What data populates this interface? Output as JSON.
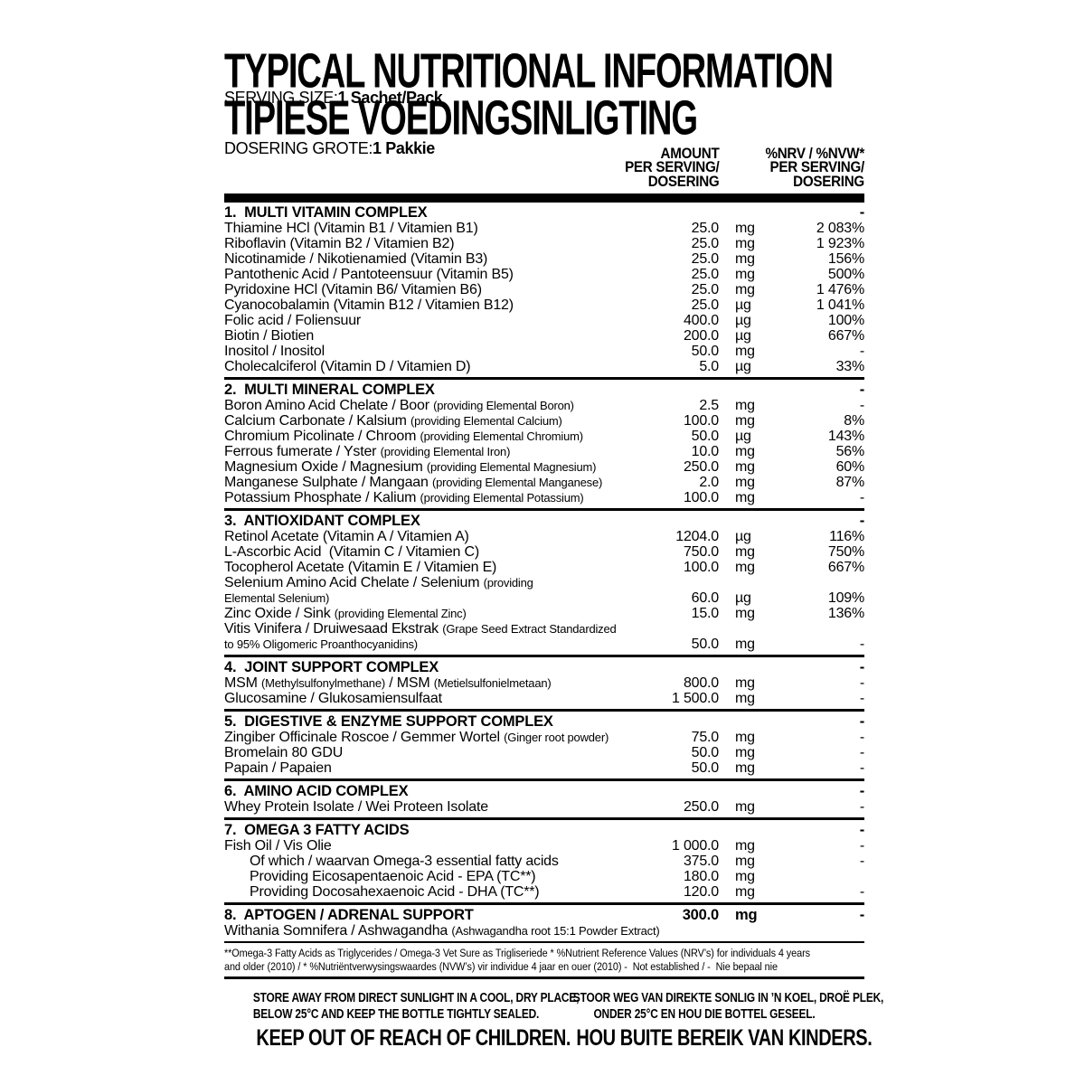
{
  "title": {
    "line1": "TYPICAL NUTRITIONAL INFORMATION",
    "line2": "TIPIESE VOEDINGSINLIGTING"
  },
  "table_header": {
    "serving_size_label": "SERVING SIZE:",
    "serving_size_value": "1 Sachet/Pack",
    "dosering_label": "DOSERING GROTE:",
    "dosering_value": "1 Pakkie",
    "amount_col": [
      "AMOUNT",
      "PER SERVING/",
      "DOSERING"
    ],
    "nrv_col": [
      "%NRV / %NVW*",
      "PER SERVING/",
      "DOSERING"
    ]
  },
  "sections": [
    {
      "num": "1.",
      "name": "MULTI VITAMIN COMPLEX",
      "amount": "",
      "unit": "",
      "nrv": "-",
      "rows": [
        {
          "seg": [
            {
              "t": "Thiamine HCl (Vitamin B1 / Vitamien B1)"
            }
          ],
          "amount": "25.0",
          "unit": "mg",
          "nrv": "2 083%"
        },
        {
          "seg": [
            {
              "t": "Riboflavin (Vitamin B2 / Vitamien B2)"
            }
          ],
          "amount": "25.0",
          "unit": "mg",
          "nrv": "1 923%"
        },
        {
          "seg": [
            {
              "t": "Nicotinamide / Nikotienamied (Vitamin B3)"
            }
          ],
          "amount": "25.0",
          "unit": "mg",
          "nrv": "156%"
        },
        {
          "seg": [
            {
              "t": "Pantothenic Acid / Pantoteensuur (Vitamin B5)"
            }
          ],
          "amount": "25.0",
          "unit": "mg",
          "nrv": "500%"
        },
        {
          "seg": [
            {
              "t": "Pyridoxine HCl (Vitamin B6/ Vitamien B6)"
            }
          ],
          "amount": "25.0",
          "unit": "mg",
          "nrv": "1 476%"
        },
        {
          "seg": [
            {
              "t": "Cyanocobalamin (Vitamin B12 / Vitamien B12)"
            }
          ],
          "amount": "25.0",
          "unit": "µg",
          "nrv": "1 041%"
        },
        {
          "seg": [
            {
              "t": "Folic acid / Foliensuur"
            }
          ],
          "amount": "400.0",
          "unit": "µg",
          "nrv": "100%"
        },
        {
          "seg": [
            {
              "t": "Biotin / Biotien"
            }
          ],
          "amount": "200.0",
          "unit": "µg",
          "nrv": "667%"
        },
        {
          "seg": [
            {
              "t": "Inositol / Inositol"
            }
          ],
          "amount": "50.0",
          "unit": "mg",
          "nrv": "-"
        },
        {
          "seg": [
            {
              "t": "Cholecalciferol (Vitamin D / Vitamien D)"
            }
          ],
          "amount": "5.0",
          "unit": "µg",
          "nrv": "33%"
        }
      ]
    },
    {
      "num": "2.",
      "name": "MULTI MINERAL COMPLEX",
      "amount": "",
      "unit": "",
      "nrv": "-",
      "rows": [
        {
          "seg": [
            {
              "t": "Boron Amino Acid Chelate / Boor "
            },
            {
              "t": "(providing Elemental Boron)",
              "sm": true
            }
          ],
          "amount": "2.5",
          "unit": "mg",
          "nrv": "-"
        },
        {
          "seg": [
            {
              "t": "Calcium Carbonate / Kalsium "
            },
            {
              "t": "(providing Elemental Calcium)",
              "sm": true
            }
          ],
          "amount": "100.0",
          "unit": "mg",
          "nrv": "8%"
        },
        {
          "seg": [
            {
              "t": "Chromium Picolinate / Chroom "
            },
            {
              "t": "(providing Elemental Chromium)",
              "sm": true
            }
          ],
          "amount": "50.0",
          "unit": "µg",
          "nrv": "143%"
        },
        {
          "seg": [
            {
              "t": "Ferrous fumerate / Yster "
            },
            {
              "t": "(providing Elemental Iron)",
              "sm": true
            }
          ],
          "amount": "10.0",
          "unit": "mg",
          "nrv": "56%"
        },
        {
          "seg": [
            {
              "t": "Magnesium Oxide / Magnesium "
            },
            {
              "t": "(providing Elemental Magnesium)",
              "sm": true
            }
          ],
          "amount": "250.0",
          "unit": "mg",
          "nrv": "60%"
        },
        {
          "seg": [
            {
              "t": "Manganese Sulphate / Mangaan "
            },
            {
              "t": "(providing Elemental Manganese)",
              "sm": true
            }
          ],
          "amount": "2.0",
          "unit": "mg",
          "nrv": "87%"
        },
        {
          "seg": [
            {
              "t": "Potassium Phosphate / Kalium "
            },
            {
              "t": "(providing Elemental Potassium)",
              "sm": true
            }
          ],
          "amount": "100.0",
          "unit": "mg",
          "nrv": "-"
        }
      ]
    },
    {
      "num": "3.",
      "name": "ANTIOXIDANT COMPLEX",
      "amount": "",
      "unit": "",
      "nrv": "-",
      "rows": [
        {
          "seg": [
            {
              "t": "Retinol Acetate (Vitamin A / Vitamien A)"
            }
          ],
          "amount": "1204.0",
          "unit": "µg",
          "nrv": "116%"
        },
        {
          "seg": [
            {
              "t": "L-Ascorbic Acid  (Vitamin C / Vitamien C)"
            }
          ],
          "amount": "750.0",
          "unit": "mg",
          "nrv": "750%"
        },
        {
          "seg": [
            {
              "t": "Tocopherol Acetate (Vitamin E / Vitamien E)"
            }
          ],
          "amount": "100.0",
          "unit": "mg",
          "nrv": "667%"
        },
        {
          "seg": [
            {
              "t": "Selenium Amino Acid Chelate / Selenium "
            },
            {
              "t": "(providing",
              "sm": true
            }
          ],
          "amount": "",
          "unit": "",
          "nrv": ""
        },
        {
          "seg": [
            {
              "t": "Elemental Selenium)",
              "sm": true
            }
          ],
          "amount": "60.0",
          "unit": "µg",
          "nrv": "109%"
        },
        {
          "seg": [
            {
              "t": "Zinc Oxide / Sink "
            },
            {
              "t": "(providing Elemental Zinc)",
              "sm": true
            }
          ],
          "amount": "15.0",
          "unit": "mg",
          "nrv": "136%"
        },
        {
          "seg": [
            {
              "t": "Vitis Vinifera / Druiwesaad Ekstrak "
            },
            {
              "t": "(Grape Seed Extract Standardized",
              "sm": true
            }
          ],
          "amount": "",
          "unit": "",
          "nrv": ""
        },
        {
          "seg": [
            {
              "t": "to 95% Oligomeric Proanthocyanidins)",
              "sm": true
            }
          ],
          "amount": "50.0",
          "unit": "mg",
          "nrv": "-"
        }
      ]
    },
    {
      "num": "4.",
      "name": "JOINT SUPPORT COMPLEX",
      "amount": "",
      "unit": "",
      "nrv": "-",
      "rows": [
        {
          "seg": [
            {
              "t": "MSM "
            },
            {
              "t": "(Methylsulfonylmethane)",
              "sm": true
            },
            {
              "t": " / MSM "
            },
            {
              "t": "(Metielsulfonielmetaan)",
              "sm": true
            }
          ],
          "amount": "800.0",
          "unit": "mg",
          "nrv": "-"
        },
        {
          "seg": [
            {
              "t": "Glucosamine / Glukosamiensulfaat"
            }
          ],
          "amount": "1 500.0",
          "unit": "mg",
          "nrv": "-"
        }
      ]
    },
    {
      "num": "5.",
      "name": "DIGESTIVE & ENZYME SUPPORT COMPLEX",
      "amount": "",
      "unit": "",
      "nrv": "-",
      "rows": [
        {
          "seg": [
            {
              "t": "Zingiber Officinale Roscoe / Gemmer Wortel "
            },
            {
              "t": "(Ginger root powder)",
              "sm": true
            }
          ],
          "amount": "75.0",
          "unit": "mg",
          "nrv": "-"
        },
        {
          "seg": [
            {
              "t": "Bromelain 80 GDU"
            }
          ],
          "amount": "50.0",
          "unit": "mg",
          "nrv": "-"
        },
        {
          "seg": [
            {
              "t": "Papain / Papaien"
            }
          ],
          "amount": "50.0",
          "unit": "mg",
          "nrv": "-"
        }
      ]
    },
    {
      "num": "6.",
      "name": "AMINO ACID COMPLEX",
      "amount": "",
      "unit": "",
      "nrv": "-",
      "rows": [
        {
          "seg": [
            {
              "t": "Whey Protein Isolate / Wei Proteen Isolate"
            }
          ],
          "amount": "250.0",
          "unit": "mg",
          "nrv": "-"
        }
      ]
    },
    {
      "num": "7.",
      "name": "OMEGA 3 FATTY ACIDS",
      "amount": "",
      "unit": "",
      "nrv": "-",
      "rows": [
        {
          "seg": [
            {
              "t": "Fish Oil / Vis Olie"
            }
          ],
          "amount": "1 000.0",
          "unit": "mg",
          "nrv": "-"
        },
        {
          "seg": [
            {
              "t": "Of which / waarvan Omega-3 essential fatty acids"
            }
          ],
          "indent": true,
          "amount": "375.0",
          "unit": "mg",
          "nrv": "-"
        },
        {
          "seg": [
            {
              "t": "Providing Eicosapentaenoic Acid - EPA (TC**)"
            }
          ],
          "indent": true,
          "amount": "180.0",
          "unit": "mg",
          "nrv": ""
        },
        {
          "seg": [
            {
              "t": "Providing Docosahexaenoic Acid - DHA (TC**)"
            }
          ],
          "indent": true,
          "amount": "120.0",
          "unit": "mg",
          "nrv": "-"
        }
      ]
    },
    {
      "num": "8.",
      "name": "APTOGEN / ADRENAL SUPPORT",
      "amount": "300.0",
      "unit": "mg",
      "nrv": "-",
      "rows": [
        {
          "seg": [
            {
              "t": "Withania Somnifera / Ashwagandha "
            },
            {
              "t": "(Ashwagandha root 15:1 Powder Extract)",
              "sm": true
            }
          ],
          "amount": "",
          "unit": "",
          "nrv": ""
        }
      ]
    }
  ],
  "footnote": {
    "line1": "**Omega-3 Fatty Acids as Triglycerides / Omega-3 Vet Sure as Trigliseriede * %Nutrient Reference Values (NRV’s) for individuals 4 years",
    "line2": "and older (2010) / * %Nutriëntverwysingswaardes (NVW’s) vir individue 4 jaar en ouer (2010) -  Not established / -  Nie bepaal nie"
  },
  "warnings": {
    "left": {
      "line1": "STORE AWAY FROM DIRECT SUNLIGHT IN A COOL, DRY PLACE,",
      "line2": "BELOW 25°C AND KEEP THE BOTTLE TIGHTLY SEALED.",
      "emphasis": "KEEP OUT OF REACH OF CHILDREN."
    },
    "right": {
      "line1": "STOOR WEG VAN DIREKTE SONLIG IN ’N KOEL, DROË PLEK,",
      "line2": "ONDER 25°C EN HOU DIE BOTTEL GESEEL.",
      "emphasis": "HOU BUITE BEREIK VAN KINDERS."
    }
  }
}
